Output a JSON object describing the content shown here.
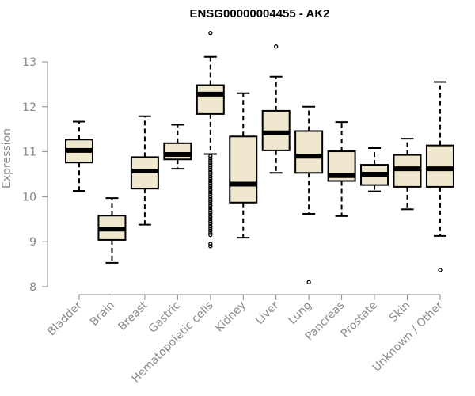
{
  "chart_data": {
    "type": "box",
    "title": "ENSG00000004455 - AK2",
    "ylabel": "Expression",
    "xlabel": "",
    "ylim": [
      8,
      13.7
    ],
    "yticks": [
      8,
      9,
      10,
      11,
      12,
      13
    ],
    "grid": false,
    "colors": {
      "box_fill": "#efe8cf",
      "box_stroke": "#000000",
      "median": "#000000",
      "axis": "#888888",
      "text": "#888888"
    },
    "categories": [
      "Bladder",
      "Brain",
      "Breast",
      "Gastric",
      "Hematopoietic cells",
      "Kidney",
      "Liver",
      "Lung",
      "Pancreas",
      "Prostate",
      "Skin",
      "Unknown / Other"
    ],
    "boxes": [
      {
        "category": "Bladder",
        "min": 10.13,
        "q1": 10.76,
        "median": 11.03,
        "q3": 11.27,
        "max": 11.67,
        "outliers": []
      },
      {
        "category": "Brain",
        "min": 8.53,
        "q1": 9.04,
        "median": 9.28,
        "q3": 9.58,
        "max": 9.97,
        "outliers": []
      },
      {
        "category": "Breast",
        "min": 9.38,
        "q1": 10.18,
        "median": 10.57,
        "q3": 10.88,
        "max": 11.79,
        "outliers": []
      },
      {
        "category": "Gastric",
        "min": 10.62,
        "q1": 10.83,
        "median": 10.94,
        "q3": 11.19,
        "max": 11.6,
        "outliers": []
      },
      {
        "category": "Hematopoietic cells",
        "min": 10.95,
        "q1": 11.84,
        "median": 12.28,
        "q3": 12.48,
        "max": 13.11,
        "outliers": [
          13.64,
          10.9,
          10.85,
          10.8,
          10.75,
          10.7,
          10.65,
          10.6,
          10.55,
          10.5,
          10.45,
          10.4,
          10.35,
          10.3,
          10.25,
          10.2,
          10.15,
          10.1,
          10.05,
          10.0,
          9.95,
          9.9,
          9.85,
          9.8,
          9.75,
          9.7,
          9.65,
          9.6,
          9.55,
          9.5,
          9.45,
          9.4,
          9.35,
          9.3,
          9.25,
          9.2,
          9.15,
          8.95,
          8.9
        ]
      },
      {
        "category": "Kidney",
        "min": 9.09,
        "q1": 9.87,
        "median": 10.28,
        "q3": 11.34,
        "max": 12.3,
        "outliers": []
      },
      {
        "category": "Liver",
        "min": 10.53,
        "q1": 11.03,
        "median": 11.42,
        "q3": 11.91,
        "max": 12.67,
        "outliers": [
          13.34
        ]
      },
      {
        "category": "Lung",
        "min": 9.62,
        "q1": 10.53,
        "median": 10.9,
        "q3": 11.46,
        "max": 12.0,
        "outliers": [
          8.1
        ]
      },
      {
        "category": "Pancreas",
        "min": 9.57,
        "q1": 10.35,
        "median": 10.47,
        "q3": 11.01,
        "max": 11.66,
        "outliers": []
      },
      {
        "category": "Prostate",
        "min": 10.12,
        "q1": 10.26,
        "median": 10.5,
        "q3": 10.71,
        "max": 11.08,
        "outliers": []
      },
      {
        "category": "Skin",
        "min": 9.72,
        "q1": 10.22,
        "median": 10.62,
        "q3": 10.93,
        "max": 11.29,
        "outliers": []
      },
      {
        "category": "Unknown / Other",
        "min": 9.13,
        "q1": 10.22,
        "median": 10.62,
        "q3": 11.14,
        "max": 12.55,
        "outliers": [
          8.37
        ]
      }
    ]
  }
}
